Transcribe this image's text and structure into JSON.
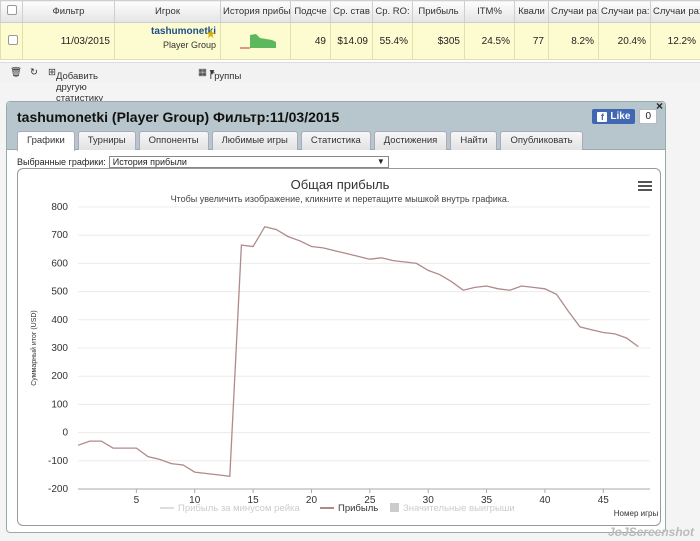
{
  "table": {
    "headers": [
      "Фильтр",
      "Игрок",
      "История прибы",
      "Подсче",
      "Ср. став",
      "Ср. RO:",
      "Прибыль",
      "ITM%",
      "Квали",
      "Случаи ра:",
      "Случаи ра:",
      "Случаи ра:"
    ],
    "row": {
      "date": "11/03/2015",
      "player_name": "tashumonetki",
      "player_group": "Player Group",
      "count": "49",
      "avg_stake": "$14.09",
      "avg_roi": "55.4%",
      "profit": "$305",
      "itm": "24.5%",
      "qual": "77",
      "case1": "8.2%",
      "case2": "20.4%",
      "case3": "12.2%"
    }
  },
  "toolbar": {
    "add_stats": "Добавить другую статистику",
    "groups": "Группы"
  },
  "dialog": {
    "title": "tashumonetki (Player Group) Фильтр:11/03/2015",
    "close": "×",
    "fb_like": "Like",
    "fb_count": "0",
    "tabs": [
      "Графики",
      "Турниры",
      "Оппоненты",
      "Любимые игры",
      "Статистика",
      "Достижения",
      "Найти",
      "Опубликовать"
    ],
    "selector_label": "Выбранные графики:",
    "selector_value": "История прибыли"
  },
  "chart_data": {
    "type": "line",
    "title": "Общая прибыль",
    "subtitle": "Чтобы увеличить изображение, кликните и перетащите мышкой внутрь графика.",
    "ylabel": "Суммарный итог (USD)",
    "xlabel": "Номер игры",
    "ylim": [
      -200,
      800
    ],
    "yticks": [
      800,
      700,
      600,
      500,
      400,
      300,
      200,
      100,
      0,
      -100,
      -200
    ],
    "xlim": [
      0,
      49
    ],
    "xticks": [
      5,
      10,
      15,
      20,
      25,
      30,
      35,
      40,
      45
    ],
    "legend": [
      "Прибыль за минусом рейка",
      "Прибыль",
      "Значительные выигрыши"
    ],
    "legend_position": "bottom",
    "series": [
      {
        "name": "Прибыль",
        "color": "#b08a8a",
        "x": [
          0,
          1,
          2,
          3,
          4,
          5,
          6,
          7,
          8,
          9,
          10,
          11,
          12,
          13,
          14,
          15,
          16,
          17,
          18,
          19,
          20,
          21,
          22,
          23,
          24,
          25,
          26,
          27,
          28,
          29,
          30,
          31,
          32,
          33,
          34,
          35,
          36,
          37,
          38,
          39,
          40,
          41,
          42,
          43,
          44,
          45,
          46,
          47,
          48
        ],
        "y": [
          -45,
          -30,
          -30,
          -55,
          -55,
          -55,
          -85,
          -95,
          -110,
          -115,
          -140,
          -145,
          -150,
          -155,
          665,
          660,
          730,
          720,
          695,
          680,
          660,
          655,
          645,
          635,
          625,
          615,
          620,
          610,
          605,
          600,
          575,
          560,
          535,
          505,
          515,
          520,
          510,
          505,
          520,
          515,
          510,
          490,
          430,
          375,
          365,
          355,
          350,
          335,
          305
        ]
      }
    ]
  },
  "watermark": "JoJScreenshot"
}
